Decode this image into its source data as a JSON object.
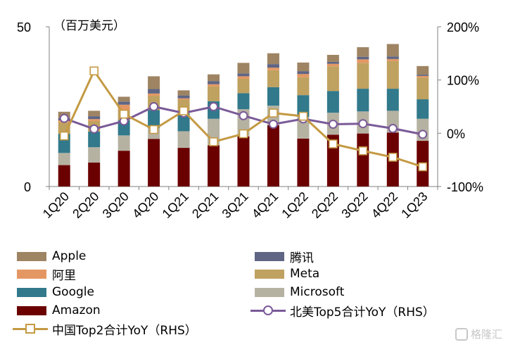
{
  "chart_data": {
    "type": "bar",
    "stacked": true,
    "unit_label": "（百万美元）",
    "categories": [
      "1Q20",
      "2Q20",
      "3Q20",
      "4Q20",
      "1Q21",
      "2Q21",
      "3Q21",
      "4Q21",
      "1Q22",
      "2Q22",
      "3Q22",
      "4Q22",
      "1Q23"
    ],
    "left_axis": {
      "ylim": [
        0,
        50
      ],
      "ticks": [
        "0",
        "50"
      ]
    },
    "right_axis": {
      "ylim": [
        -100,
        200
      ],
      "ticks": [
        "-100%",
        "0%",
        "100%",
        "200%"
      ]
    },
    "series": [
      {
        "name": "Amazon",
        "color": "#6b0000",
        "values": [
          6.7,
          7.5,
          11.2,
          14.9,
          12.1,
          12.9,
          15.7,
          19.2,
          15.0,
          16.2,
          16.6,
          16.9,
          14.3
        ]
      },
      {
        "name": "Microsoft",
        "color": "#b6b2a2",
        "values": [
          3.8,
          4.8,
          4.8,
          3.4,
          5.2,
          8.3,
          8.5,
          6.1,
          6.8,
          6.9,
          6.9,
          6.8,
          6.9
        ]
      },
      {
        "name": "Google",
        "color": "#31798b",
        "values": [
          6.0,
          4.9,
          4.7,
          5.6,
          5.5,
          5.5,
          5.0,
          5.8,
          6.8,
          6.8,
          7.1,
          6.9,
          6.1
        ]
      },
      {
        "name": "Meta",
        "color": "#bfa160",
        "values": [
          3.6,
          3.3,
          3.2,
          4.5,
          4.4,
          4.6,
          4.5,
          5.3,
          5.6,
          7.7,
          8.1,
          8.7,
          6.8
        ]
      },
      {
        "name": "阿里",
        "color": "#e59763",
        "values": [
          0.6,
          0.6,
          1.7,
          0.7,
          0.4,
          0.7,
          0.8,
          0.8,
          1.0,
          0.8,
          1.1,
          0.6,
          0.5
        ]
      },
      {
        "name": "腾讯",
        "color": "#5f6584",
        "values": [
          0.7,
          0.9,
          1.0,
          1.4,
          0.9,
          1.0,
          0.9,
          1.1,
          0.9,
          0.6,
          0.8,
          0.8,
          0.4
        ]
      },
      {
        "name": "Apple",
        "color": "#9e8463",
        "values": [
          2.0,
          1.7,
          1.5,
          4.0,
          1.6,
          2.1,
          3.3,
          3.4,
          2.7,
          2.2,
          3.0,
          3.9,
          2.7
        ]
      }
    ],
    "lines": [
      {
        "name": "北美Top5合计YoY（RHS）",
        "axis": "right",
        "marker": "circle",
        "color": "#7a5a98",
        "values": [
          28,
          8,
          23,
          50,
          38,
          50,
          33,
          17,
          27,
          17,
          18,
          9,
          -2
        ]
      },
      {
        "name": "中国Top2合计YoY（RHS）",
        "axis": "right",
        "marker": "square",
        "color": "#c49a43",
        "values": [
          -5,
          117,
          36,
          7,
          42,
          -16,
          -1,
          38,
          32,
          -20,
          -33,
          -45,
          -63
        ]
      }
    ],
    "legend_order": [
      "Apple",
      "腾讯",
      "阿里",
      "Meta",
      "Google",
      "Microsoft",
      "Amazon",
      "北美Top5合计YoY（RHS）",
      "中国Top2合计YoY（RHS）"
    ],
    "legend_placement": "bottom",
    "grid": false
  },
  "watermark": "格隆汇"
}
